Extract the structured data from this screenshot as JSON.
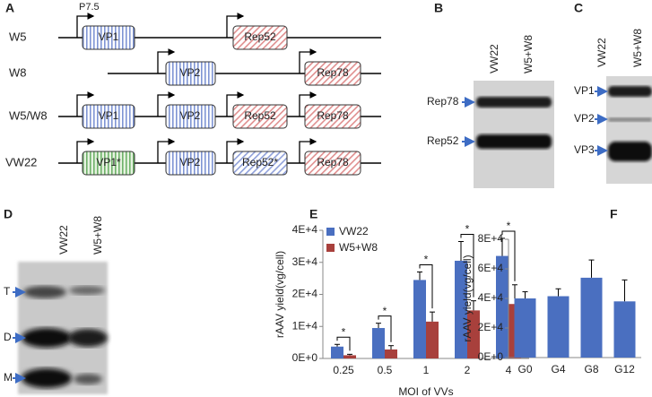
{
  "panel_a": {
    "letter": "A",
    "promoter": "P7.5",
    "rows": [
      {
        "name": "W5",
        "boxes": [
          "VP1",
          "Rep52"
        ]
      },
      {
        "name": "W8",
        "boxes": [
          "VP2",
          "Rep78"
        ]
      },
      {
        "name": "W5/W8",
        "boxes": [
          "VP1",
          "VP2",
          "Rep52",
          "Rep78"
        ]
      },
      {
        "name": "VW22",
        "boxes": [
          "VP1*",
          "VP2",
          "Rep52*",
          "Rep78"
        ]
      }
    ]
  },
  "panel_b": {
    "letter": "B",
    "lanes": [
      "VW22",
      "W5+W8"
    ],
    "bands": [
      "Rep78",
      "Rep52"
    ]
  },
  "panel_c": {
    "letter": "C",
    "lanes": [
      "VW22",
      "W5+W8"
    ],
    "bands": [
      "VP1",
      "VP2",
      "VP3"
    ]
  },
  "panel_d": {
    "letter": "D",
    "lanes": [
      "VW22",
      "W5+W8"
    ],
    "bands": [
      "T",
      "D",
      "M"
    ]
  },
  "chart_data": [
    {
      "type": "bar",
      "panel_label": "E",
      "categories": [
        "0.25",
        "0.5",
        "1",
        "2",
        "4"
      ],
      "series": [
        {
          "name": "VW22",
          "color": "#4a6fc0",
          "values": [
            3700,
            9500,
            24500,
            30500,
            32000
          ],
          "errors": [
            700,
            1500,
            2500,
            6000,
            5500
          ]
        },
        {
          "name": "W5+W8",
          "color": "#a8403c",
          "values": [
            1000,
            2800,
            11500,
            15000,
            17000
          ],
          "errors": [
            300,
            1200,
            3000,
            3000,
            6000
          ]
        }
      ],
      "annotations": [
        "*",
        "*",
        "*",
        "*",
        "*"
      ],
      "ylim": [
        0,
        40000
      ],
      "yticks": [
        {
          "value": 0,
          "label": "0E+0"
        },
        {
          "value": 10000,
          "label": "1E+4"
        },
        {
          "value": 20000,
          "label": "2E+4"
        },
        {
          "value": 30000,
          "label": "3E+4"
        },
        {
          "value": 40000,
          "label": "4E+4"
        }
      ],
      "ylabel": "rAAV yield(vg/cell)",
      "xlabel": "MOI of VVs",
      "legend": "top-left",
      "grid": false
    },
    {
      "type": "bar",
      "panel_label": "F",
      "categories": [
        "G0",
        "G4",
        "G8",
        "G12"
      ],
      "series": [
        {
          "name": null,
          "color": "#4a6fc0",
          "values": [
            40000,
            41500,
            54000,
            38000
          ],
          "errors": [
            4500,
            5000,
            12000,
            14500
          ]
        }
      ],
      "ylim": [
        0,
        80000
      ],
      "yticks": [
        {
          "value": 0,
          "label": "0E+0"
        },
        {
          "value": 20000,
          "label": "2E+4"
        },
        {
          "value": 40000,
          "label": "4E+4"
        },
        {
          "value": 60000,
          "label": "6E+4"
        },
        {
          "value": 80000,
          "label": "8E+4"
        }
      ],
      "ylabel": "rAAV yield(vg/cell)",
      "grid": false
    }
  ]
}
